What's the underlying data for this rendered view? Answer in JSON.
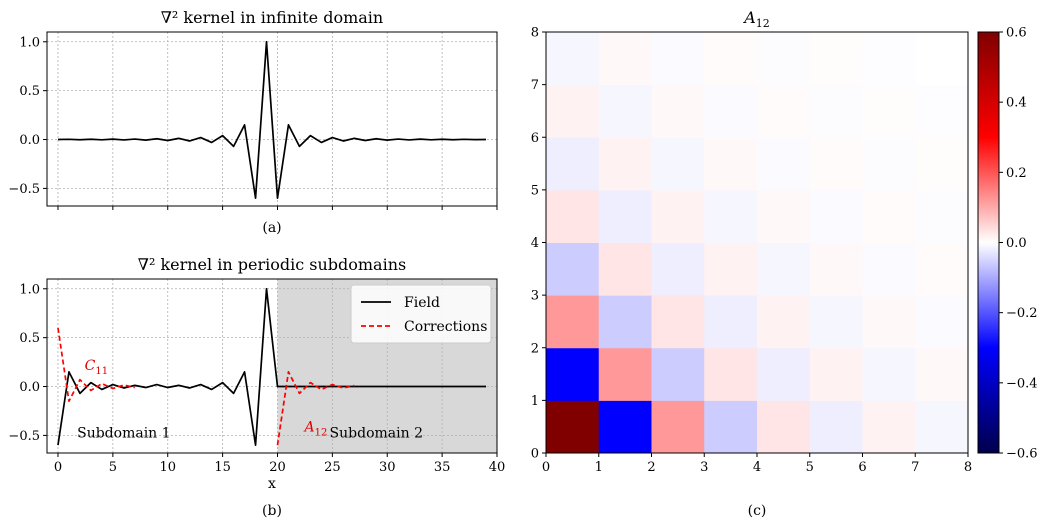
{
  "chart_data": [
    {
      "type": "line",
      "title": "∇² kernel in infinite domain",
      "caption": "(a)",
      "xlim": [
        -1,
        40
      ],
      "ylim": [
        -0.68,
        1.1
      ],
      "yticks": [
        -0.5,
        0.0,
        0.5,
        1.0
      ],
      "ytick_labels": [
        "−0.5",
        "0.0",
        "0.5",
        "1.0"
      ],
      "xticks": [
        0,
        5,
        10,
        15,
        20,
        25,
        30,
        35,
        40
      ],
      "grid": true,
      "series": [
        {
          "color": "#000000",
          "x": [
            0,
            1,
            2,
            3,
            4,
            5,
            6,
            7,
            8,
            9,
            10,
            11,
            12,
            13,
            14,
            15,
            16,
            17,
            18,
            19,
            20,
            21,
            22,
            23,
            24,
            25,
            26,
            27,
            28,
            29,
            30,
            31,
            32,
            33,
            34,
            35,
            36,
            37,
            38,
            39
          ],
          "y": [
            0.0,
            0.002,
            -0.002,
            0.003,
            -0.003,
            0.004,
            -0.004,
            0.005,
            -0.006,
            0.008,
            -0.01,
            0.012,
            -0.015,
            0.02,
            -0.03,
            0.04,
            -0.07,
            0.15,
            -0.6,
            1.0,
            -0.6,
            0.15,
            -0.07,
            0.04,
            -0.03,
            0.02,
            -0.015,
            0.012,
            -0.01,
            0.008,
            -0.006,
            0.005,
            -0.004,
            0.004,
            -0.003,
            0.003,
            -0.002,
            0.002,
            -0.001,
            0.0
          ]
        }
      ]
    },
    {
      "type": "line",
      "title": "∇² kernel in periodic subdomains",
      "caption": "(b)",
      "xlabel": "x",
      "xlim": [
        -1,
        40
      ],
      "ylim": [
        -0.68,
        1.1
      ],
      "yticks": [
        -0.5,
        0.0,
        0.5,
        1.0
      ],
      "ytick_labels": [
        "−0.5",
        "0.0",
        "0.5",
        "1.0"
      ],
      "xticks": [
        0,
        5,
        10,
        15,
        20,
        25,
        30,
        35,
        40
      ],
      "grid": true,
      "legend": "top-right",
      "shaded_region": {
        "x0": 20,
        "x1": 40,
        "color": "#d8d8d8"
      },
      "series": [
        {
          "name": "Field",
          "color": "#000000",
          "style": "solid",
          "x": [
            0,
            1,
            2,
            3,
            4,
            5,
            6,
            7,
            8,
            9,
            10,
            11,
            12,
            13,
            14,
            15,
            16,
            17,
            18,
            19,
            20,
            21,
            22,
            23,
            24,
            25,
            26,
            27,
            28,
            29,
            30,
            31,
            32,
            33,
            34,
            35,
            36,
            37,
            38,
            39
          ],
          "y": [
            -0.6,
            0.15,
            -0.07,
            0.04,
            -0.03,
            0.02,
            -0.015,
            0.012,
            -0.01,
            0.02,
            -0.01,
            0.012,
            -0.015,
            0.02,
            -0.03,
            0.04,
            -0.07,
            0.15,
            -0.6,
            1.0,
            0,
            0,
            0,
            0,
            0,
            0,
            0,
            0,
            0,
            0,
            0,
            0,
            0,
            0,
            0,
            0,
            0,
            0,
            0,
            0
          ]
        },
        {
          "name": "Corrections",
          "color": "#ff0000",
          "style": "dashed",
          "x": [
            0,
            1,
            2,
            3,
            4,
            5,
            6,
            7
          ],
          "y": [
            0.6,
            -0.15,
            0.07,
            -0.04,
            0.03,
            -0.02,
            0.015,
            -0.01
          ]
        },
        {
          "name": "Corrections",
          "color": "#ff0000",
          "style": "dashed",
          "x": [
            20,
            21,
            22,
            23,
            24,
            25,
            26,
            27
          ],
          "y": [
            -0.6,
            0.15,
            -0.07,
            0.04,
            -0.03,
            0.02,
            -0.015,
            0.01
          ]
        }
      ],
      "annotations": [
        {
          "text": "C",
          "sub": "11",
          "x": 3.5,
          "y": 0.17,
          "color": "#e00000"
        },
        {
          "text": "A",
          "sub": "12",
          "x": 23.5,
          "y": -0.46,
          "color": "#e00000"
        },
        {
          "text": "Subdomain 1",
          "x": 6,
          "y": -0.52
        },
        {
          "text": "Subdomain 2",
          "x": 29,
          "y": -0.52
        }
      ]
    },
    {
      "type": "heatmap",
      "title": "A",
      "title_sub": "12",
      "caption": "(c)",
      "xlim": [
        0,
        8
      ],
      "ylim": [
        0,
        8
      ],
      "xticks": [
        0,
        1,
        2,
        3,
        4,
        5,
        6,
        7,
        8
      ],
      "yticks": [
        0,
        1,
        2,
        3,
        4,
        5,
        6,
        7,
        8
      ],
      "colormap": "seismic",
      "vmin": -0.6,
      "vmax": 0.6,
      "colorbar_ticks": [
        -0.6,
        -0.4,
        -0.2,
        0.0,
        0.2,
        0.4,
        0.6
      ],
      "colorbar_tick_labels": [
        "−0.6",
        "−0.4",
        "−0.2",
        "0.0",
        "0.2",
        "0.4",
        "0.6"
      ],
      "rows_bottom_to_top": [
        [
          0.6,
          -0.3,
          0.12,
          -0.06,
          0.03,
          -0.02,
          0.015,
          -0.01
        ],
        [
          -0.3,
          0.12,
          -0.06,
          0.03,
          -0.02,
          0.015,
          -0.01,
          0.008
        ],
        [
          0.12,
          -0.06,
          0.03,
          -0.02,
          0.015,
          -0.01,
          0.008,
          -0.006
        ],
        [
          -0.06,
          0.03,
          -0.02,
          0.015,
          -0.01,
          0.008,
          -0.006,
          0.005
        ],
        [
          0.03,
          -0.02,
          0.015,
          -0.01,
          0.008,
          -0.006,
          0.005,
          -0.004
        ],
        [
          -0.02,
          0.015,
          -0.01,
          0.008,
          -0.006,
          0.005,
          -0.004,
          0.003
        ],
        [
          0.015,
          -0.01,
          0.008,
          -0.006,
          0.005,
          -0.004,
          0.003,
          -0.002
        ],
        [
          -0.01,
          0.008,
          -0.006,
          0.005,
          -0.004,
          0.003,
          -0.002,
          0.0
        ]
      ]
    }
  ]
}
